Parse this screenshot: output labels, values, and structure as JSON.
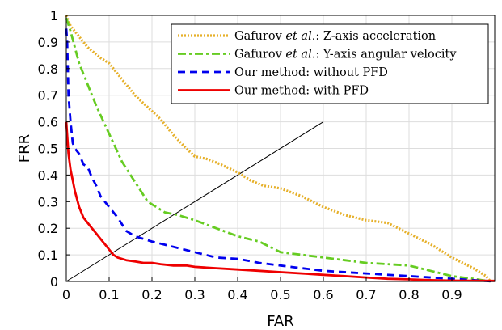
{
  "chart_data": {
    "type": "line",
    "xlabel": "FAR",
    "ylabel": "FRR",
    "xlim": [
      0,
      1
    ],
    "ylim": [
      0,
      1
    ],
    "xticks": [
      "0",
      "0.1",
      "0.2",
      "0.3",
      "0.4",
      "0.5",
      "0.6",
      "0.7",
      "0.8",
      "0.9"
    ],
    "yticks": [
      "0",
      "0.1",
      "0.2",
      "0.3",
      "0.4",
      "0.5",
      "0.6",
      "0.7",
      "0.8",
      "0.9",
      "1"
    ],
    "grid": true,
    "legend_position": "top-right",
    "series": [
      {
        "name": "Gafurov et al.: Z-axis acceleration",
        "legend": {
          "pre": "Gafurov ",
          "em": "et al.",
          "post": ": Z-axis acceleration"
        },
        "color": "#E6B02A",
        "style": "dotted",
        "x": [
          0,
          0.01,
          0.03,
          0.05,
          0.08,
          0.1,
          0.12,
          0.14,
          0.16,
          0.18,
          0.2,
          0.22,
          0.25,
          0.28,
          0.3,
          0.33,
          0.36,
          0.4,
          0.43,
          0.46,
          0.5,
          0.55,
          0.6,
          0.65,
          0.7,
          0.75,
          0.8,
          0.85,
          0.9,
          0.95,
          0.98,
          0.99
        ],
        "y": [
          1,
          0.96,
          0.92,
          0.88,
          0.84,
          0.82,
          0.78,
          0.74,
          0.7,
          0.67,
          0.64,
          0.61,
          0.55,
          0.5,
          0.47,
          0.46,
          0.44,
          0.41,
          0.38,
          0.36,
          0.35,
          0.32,
          0.28,
          0.25,
          0.23,
          0.22,
          0.18,
          0.14,
          0.09,
          0.05,
          0.02,
          0
        ]
      },
      {
        "name": "Gafurov et al.: Y-axis angular velocity",
        "legend": {
          "pre": "Gafurov ",
          "em": "et al.",
          "post": ": Y-axis angular velocity"
        },
        "color": "#66CC22",
        "style": "dashdot",
        "x": [
          0,
          0.01,
          0.02,
          0.03,
          0.05,
          0.07,
          0.09,
          0.11,
          0.13,
          0.15,
          0.17,
          0.19,
          0.21,
          0.23,
          0.26,
          0.3,
          0.35,
          0.4,
          0.45,
          0.5,
          0.55,
          0.6,
          0.65,
          0.7,
          0.75,
          0.8,
          0.85,
          0.9,
          0.95,
          0.99
        ],
        "y": [
          0.99,
          0.94,
          0.88,
          0.82,
          0.74,
          0.66,
          0.59,
          0.52,
          0.45,
          0.4,
          0.35,
          0.3,
          0.28,
          0.26,
          0.25,
          0.23,
          0.2,
          0.17,
          0.15,
          0.11,
          0.1,
          0.09,
          0.08,
          0.07,
          0.065,
          0.06,
          0.04,
          0.02,
          0.01,
          0
        ]
      },
      {
        "name": "Our method: without PFD",
        "legend": {
          "pre": "Our method: without PFD",
          "em": "",
          "post": ""
        },
        "color": "#0000EE",
        "style": "dashed",
        "x": [
          0,
          0.002,
          0.005,
          0.01,
          0.015,
          0.02,
          0.03,
          0.04,
          0.05,
          0.06,
          0.07,
          0.08,
          0.1,
          0.12,
          0.14,
          0.16,
          0.2,
          0.25,
          0.3,
          0.35,
          0.4,
          0.45,
          0.5,
          0.55,
          0.6,
          0.7,
          0.8,
          0.9,
          1.0
        ],
        "y": [
          0.95,
          0.9,
          0.7,
          0.6,
          0.52,
          0.5,
          0.48,
          0.44,
          0.43,
          0.39,
          0.36,
          0.32,
          0.28,
          0.24,
          0.19,
          0.17,
          0.15,
          0.13,
          0.11,
          0.09,
          0.085,
          0.07,
          0.06,
          0.05,
          0.04,
          0.03,
          0.02,
          0.01,
          0
        ]
      },
      {
        "name": "Our method: with PFD",
        "legend": {
          "pre": "Our method: with PFD",
          "em": "",
          "post": ""
        },
        "color": "#EE0000",
        "style": "solid",
        "x": [
          0,
          0.002,
          0.005,
          0.01,
          0.015,
          0.02,
          0.03,
          0.04,
          0.05,
          0.06,
          0.07,
          0.08,
          0.09,
          0.1,
          0.11,
          0.12,
          0.14,
          0.16,
          0.18,
          0.2,
          0.22,
          0.25,
          0.28,
          0.3,
          0.35,
          0.4,
          0.45,
          0.5,
          0.55,
          0.6,
          0.65,
          0.7,
          0.75,
          0.8,
          0.85,
          0.9,
          1.0
        ],
        "y": [
          0.6,
          0.55,
          0.48,
          0.42,
          0.38,
          0.34,
          0.28,
          0.24,
          0.22,
          0.2,
          0.18,
          0.16,
          0.14,
          0.12,
          0.1,
          0.09,
          0.08,
          0.075,
          0.07,
          0.07,
          0.065,
          0.06,
          0.06,
          0.055,
          0.05,
          0.045,
          0.04,
          0.035,
          0.03,
          0.025,
          0.02,
          0.015,
          0.01,
          0.008,
          0.005,
          0.003,
          0.002
        ]
      }
    ],
    "reference_line": {
      "x": [
        0,
        0.6
      ],
      "y": [
        0,
        0.6
      ],
      "color": "#000000"
    }
  }
}
